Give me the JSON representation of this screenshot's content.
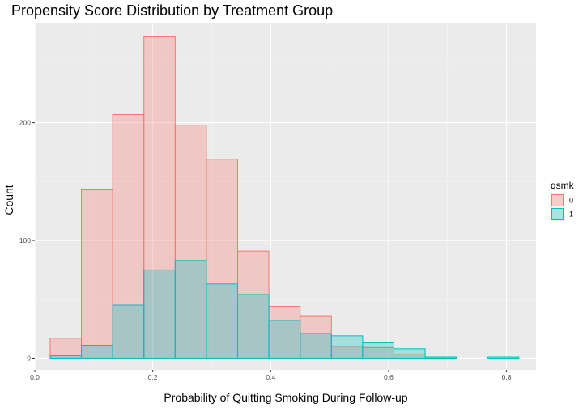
{
  "chart_data": {
    "type": "histogram",
    "title": "Propensity Score Distribution by Treatment Group",
    "xlabel": "Probability of Quitting Smoking During Follow-up",
    "ylabel": "Count",
    "xlim": [
      0.0,
      0.85
    ],
    "ylim": [
      -10,
      285
    ],
    "x_ticks": [
      0.0,
      0.2,
      0.4,
      0.6,
      0.8
    ],
    "x_tick_labels": [
      "0.0",
      "0.2",
      "0.4",
      "0.6",
      "0.8"
    ],
    "y_ticks": [
      0,
      100,
      200
    ],
    "y_tick_labels": [
      "0",
      "100",
      "200"
    ],
    "bin_starts": [
      0.026,
      0.079,
      0.132,
      0.185,
      0.238,
      0.291,
      0.344,
      0.397,
      0.45,
      0.503,
      0.556,
      0.609,
      0.662,
      0.715,
      0.768
    ],
    "bin_width": 0.053,
    "grid": true,
    "legend": {
      "title": "qsmk",
      "position": "right"
    },
    "series": [
      {
        "name": "0",
        "fill": "#F8766D",
        "stroke": "#F8766D",
        "values": [
          17,
          143,
          207,
          273,
          198,
          169,
          91,
          44,
          36,
          10,
          9,
          3,
          1,
          0,
          0
        ]
      },
      {
        "name": "1",
        "fill": "#00BFC4",
        "stroke": "#00BFC4",
        "values": [
          2,
          11,
          45,
          75,
          83,
          63,
          54,
          32,
          21,
          19,
          13,
          8,
          1,
          0,
          1
        ]
      }
    ]
  }
}
